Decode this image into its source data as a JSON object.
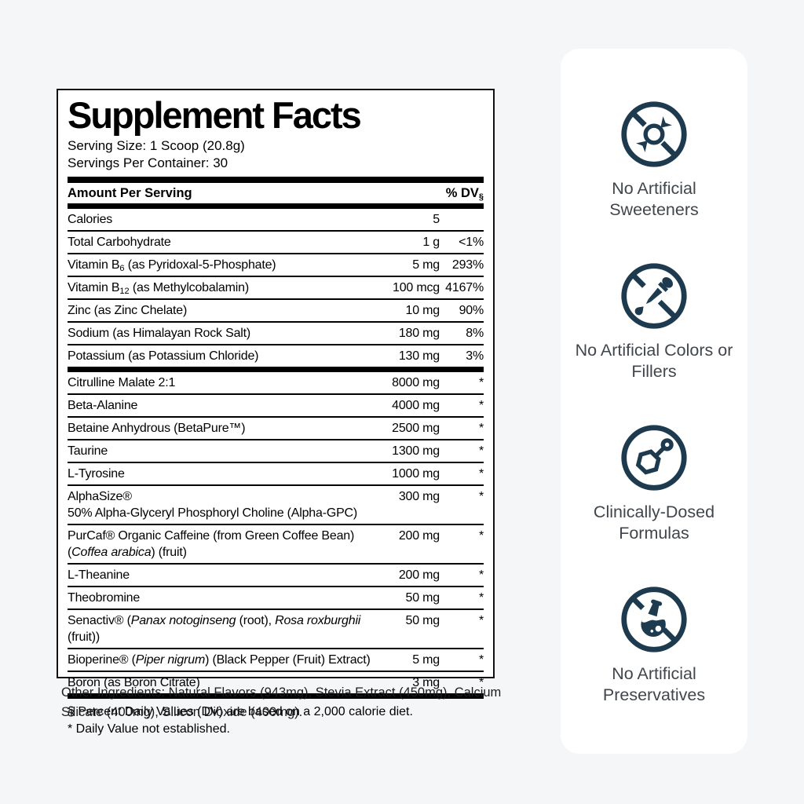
{
  "page": {
    "background": "#f5f6f8"
  },
  "label": {
    "title": "Supplement Facts",
    "serving_size": "Serving Size: 1 Scoop (20.8g)",
    "servings_per_container": "Servings Per Container: 30",
    "header": {
      "amount": "Amount Per Serving",
      "dv": "% DV",
      "dv_mark": "§"
    },
    "rows": [
      {
        "name": [
          {
            "t": "Calories"
          }
        ],
        "amount": "5",
        "dv": ""
      },
      {
        "name": [
          {
            "t": "Total Carbohydrate"
          }
        ],
        "amount": "1 g",
        "dv": "<1%"
      },
      {
        "name": [
          {
            "t": "Vitamin B"
          },
          {
            "t": "6",
            "s": "sub"
          },
          {
            "t": " (as Pyridoxal-5-Phosphate)"
          }
        ],
        "amount": "5 mg",
        "dv": "293%"
      },
      {
        "name": [
          {
            "t": "Vitamin B"
          },
          {
            "t": "12",
            "s": "sub"
          },
          {
            "t": " (as Methylcobalamin)"
          }
        ],
        "amount": "100 mcg",
        "dv": "4167%"
      },
      {
        "name": [
          {
            "t": "Zinc (as Zinc Chelate)"
          }
        ],
        "amount": "10 mg",
        "dv": "90%"
      },
      {
        "name": [
          {
            "t": "Sodium (as Himalayan Rock Salt)"
          }
        ],
        "amount": "180 mg",
        "dv": "8%"
      },
      {
        "name": [
          {
            "t": "Potassium (as Potassium Chloride)"
          }
        ],
        "amount": "130 mg",
        "dv": "3%",
        "thick": true
      },
      {
        "name": [
          {
            "t": "Citrulline Malate 2:1"
          }
        ],
        "amount": "8000 mg",
        "dv": "*"
      },
      {
        "name": [
          {
            "t": "Beta-Alanine"
          }
        ],
        "amount": "4000 mg",
        "dv": "*"
      },
      {
        "name": [
          {
            "t": "Betaine Anhydrous (BetaPure™)"
          }
        ],
        "amount": "2500 mg",
        "dv": "*"
      },
      {
        "name": [
          {
            "t": "Taurine"
          }
        ],
        "amount": "1300 mg",
        "dv": "*"
      },
      {
        "name": [
          {
            "t": "L-Tyrosine"
          }
        ],
        "amount": "1000 mg",
        "dv": "*"
      },
      {
        "name": [
          {
            "t": "AlphaSize®"
          }
        ],
        "line2": [
          {
            "t": "50% Alpha-Glyceryl Phosphoryl Choline (Alpha-GPC)"
          }
        ],
        "amount": "300 mg",
        "dv": "*"
      },
      {
        "name": [
          {
            "t": "PurCaf® Organic Caffeine (from Green Coffee Bean)"
          }
        ],
        "line2": [
          {
            "t": "("
          },
          {
            "t": "Coffea arabica",
            "s": "i"
          },
          {
            "t": ") (fruit)"
          }
        ],
        "amount": "200 mg",
        "dv": "*"
      },
      {
        "name": [
          {
            "t": "L-Theanine"
          }
        ],
        "amount": "200 mg",
        "dv": "*"
      },
      {
        "name": [
          {
            "t": "Theobromine"
          }
        ],
        "amount": "50 mg",
        "dv": "*"
      },
      {
        "name": [
          {
            "t": "Senactiv® ("
          },
          {
            "t": "Panax notoginseng",
            "s": "i"
          },
          {
            "t": " (root), "
          },
          {
            "t": "Rosa roxburghii",
            "s": "i"
          },
          {
            "t": " (fruit))"
          }
        ],
        "amount": "50 mg",
        "dv": "*"
      },
      {
        "name": [
          {
            "t": "Bioperine® ("
          },
          {
            "t": "Piper nigrum",
            "s": "i"
          },
          {
            "t": ") (Black Pepper (Fruit) Extract)"
          }
        ],
        "amount": "5 mg",
        "dv": "*"
      },
      {
        "name": [
          {
            "t": "Boron (as Boron Citrate)"
          }
        ],
        "amount": "3 mg",
        "dv": "*",
        "thick": true
      }
    ],
    "footnotes": [
      "§ Percent Daily Values (DV) are based on a 2,000 calorie diet.",
      "* Daily Value not established."
    ],
    "other_ingredients": "Other Ingredients: Natural Flavors (943mg), Stevia Extract (450mg), Calcium Silicate (400mg), Silicon Dioxide (400mg)."
  },
  "badges": {
    "accent_color": "#1e3a4f",
    "label_color": "#40464c",
    "items": [
      {
        "icon": "no-artificial-sweeteners-icon",
        "label": "No Artificial Sweeteners"
      },
      {
        "icon": "no-artificial-colors-fillers-icon",
        "label": "No Artificial Colors or Fillers"
      },
      {
        "icon": "clinically-dosed-formulas-icon",
        "label": "Clinically-Dosed Formulas"
      },
      {
        "icon": "no-artificial-preservatives-icon",
        "label": "No Artificial Preservatives"
      }
    ]
  }
}
